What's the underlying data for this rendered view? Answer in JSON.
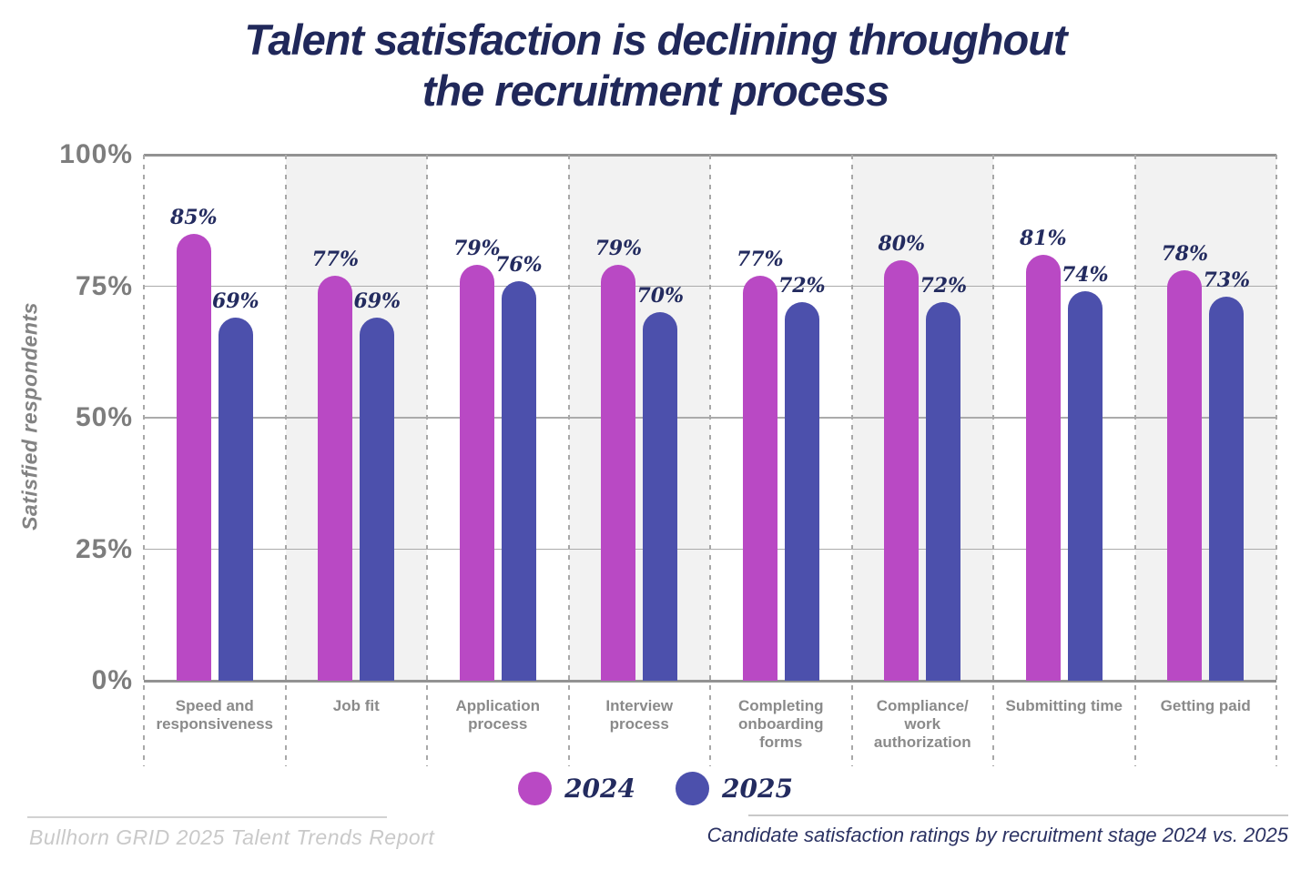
{
  "title": {
    "line1": "Talent satisfaction is declining throughout",
    "line2": "the recruitment process"
  },
  "y_axis": {
    "label": "Satisfied respondents"
  },
  "legend": {
    "items": [
      {
        "label": "2024",
        "color": "#b949c4"
      },
      {
        "label": "2025",
        "color": "#4c50ac"
      }
    ]
  },
  "footer": {
    "source": "Bullhorn GRID 2025 Talent Trends Report",
    "caption": "Candidate satisfaction ratings by recruitment stage 2024 vs. 2025"
  },
  "colors": {
    "series_2024": "#b949c4",
    "series_2025": "#4c50ac",
    "title_navy": "#20285a",
    "value_label_navy": "#232b5f",
    "axis_gray": "#7d7d7d",
    "category_gray": "#8a8a8a",
    "shaded_column": "#f2f2f2"
  },
  "chart_data": {
    "type": "bar",
    "title": "Talent satisfaction is declining throughout the recruitment process",
    "xlabel": "",
    "ylabel": "Satisfied respondents",
    "ylim": [
      0,
      100
    ],
    "yticks": [
      0,
      25,
      50,
      75,
      100
    ],
    "ytick_labels": [
      "0%",
      "25%",
      "50%",
      "75%",
      "100%"
    ],
    "value_suffix": "%",
    "grid": "horizontal solid gridlines, dashed vertical column separators",
    "legend_position": "bottom",
    "alternating_column_background": true,
    "categories": [
      "Speed and responsiveness",
      "Job fit",
      "Application process",
      "Interview process",
      "Completing onboarding forms",
      "Compliance/work authorization",
      "Submitting time",
      "Getting paid"
    ],
    "categories_display": [
      "Speed and\nresponsiveness",
      "Job fit",
      "Application\nprocess",
      "Interview\nprocess",
      "Completing\nonboarding\nforms",
      "Compliance/\nwork\nauthorization",
      "Submitting time",
      "Getting paid"
    ],
    "series": [
      {
        "name": "2024",
        "color": "#b949c4",
        "values": [
          85,
          77,
          79,
          79,
          77,
          80,
          81,
          78
        ]
      },
      {
        "name": "2025",
        "color": "#4c50ac",
        "values": [
          69,
          69,
          76,
          70,
          72,
          72,
          74,
          73
        ]
      }
    ]
  }
}
